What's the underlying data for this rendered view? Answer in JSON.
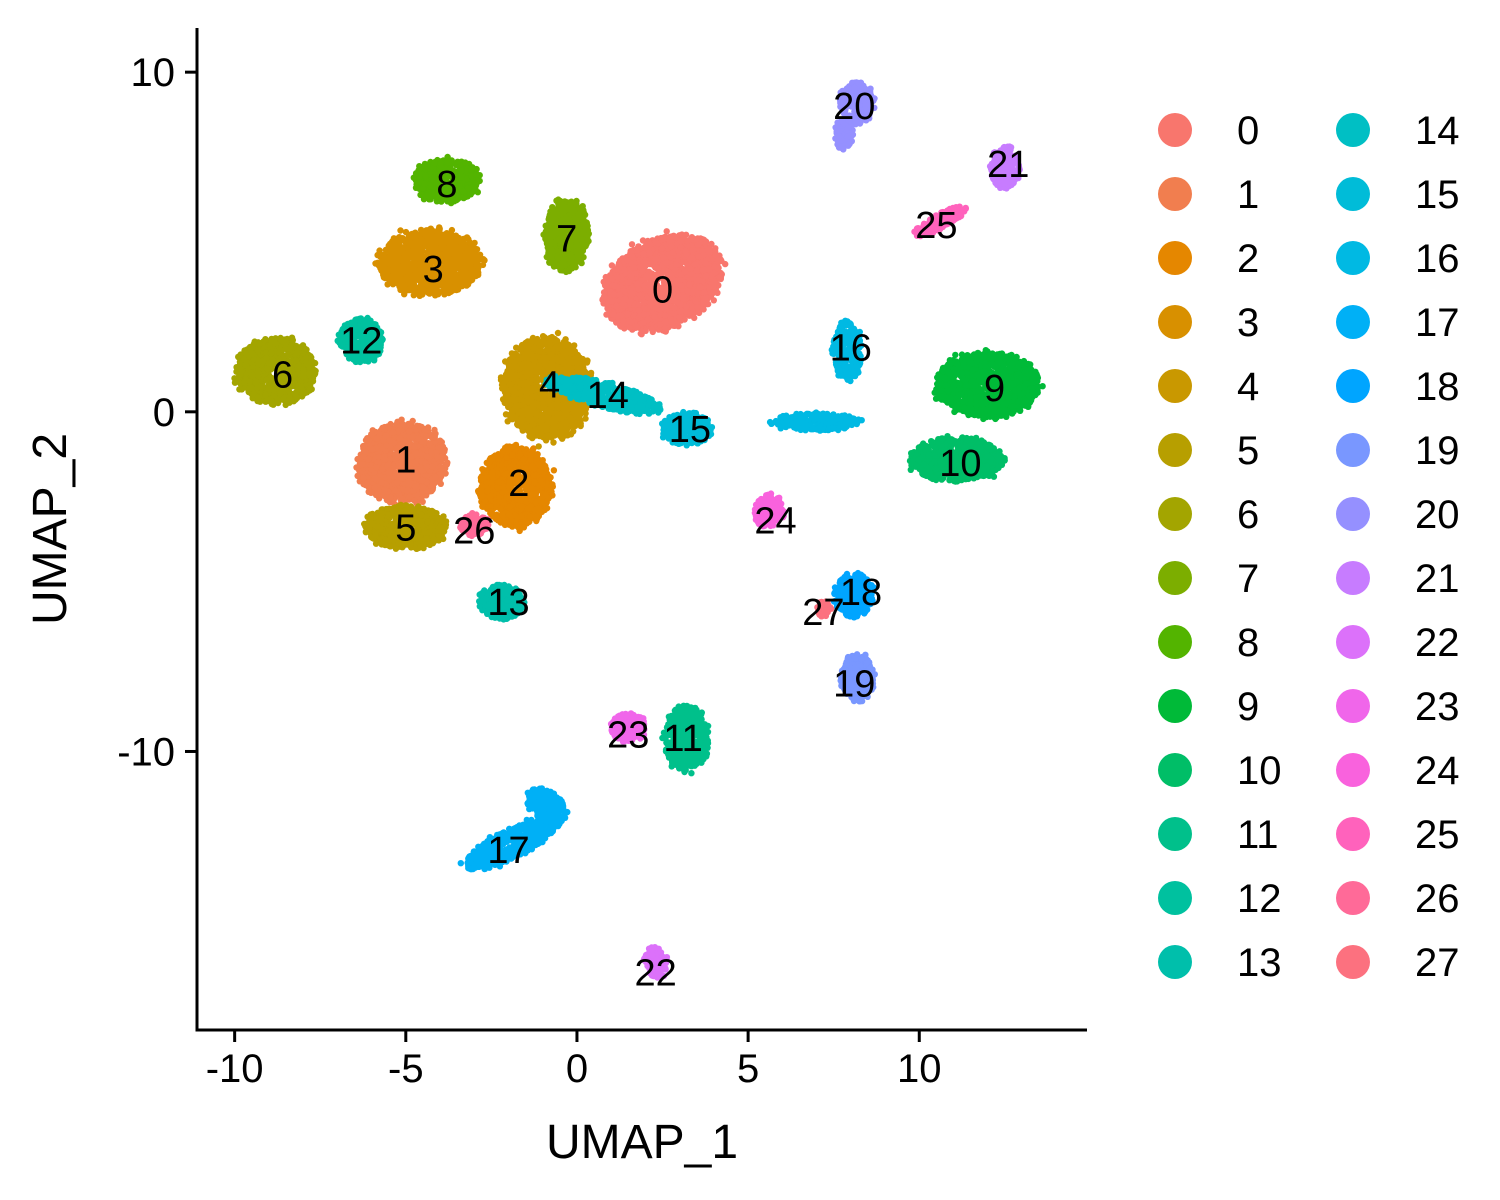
{
  "chart_data": {
    "type": "scatter",
    "title": "",
    "xlabel": "UMAP_1",
    "ylabel": "UMAP_2",
    "xlim": [
      -11.1,
      14.9
    ],
    "ylim": [
      -18.2,
      11.3
    ],
    "x_ticks": [
      -10,
      -5,
      0,
      5,
      10
    ],
    "y_ticks": [
      -10,
      0,
      10
    ],
    "x_tick_labels": [
      "-10",
      "-5",
      "0",
      "5",
      "10"
    ],
    "y_tick_labels": [
      "-10",
      "0",
      "10"
    ],
    "legend": {
      "placement": "right",
      "columns": 2
    },
    "grid": false,
    "clusters": [
      {
        "name": "0",
        "color": "#F8766D",
        "x": 2.5,
        "y": 3.6
      },
      {
        "name": "1",
        "color": "#F17E4F",
        "x": -5.0,
        "y": -1.4
      },
      {
        "name": "2",
        "color": "#E58700",
        "x": -1.7,
        "y": -2.1
      },
      {
        "name": "3",
        "color": "#D89000",
        "x": -4.2,
        "y": 4.2
      },
      {
        "name": "4",
        "color": "#C99800",
        "x": -0.8,
        "y": 0.8
      },
      {
        "name": "5",
        "color": "#B79F00",
        "x": -5.0,
        "y": -3.4
      },
      {
        "name": "6",
        "color": "#A3A500",
        "x": -8.6,
        "y": 1.1
      },
      {
        "name": "7",
        "color": "#7CAE00",
        "x": -0.3,
        "y": 5.1
      },
      {
        "name": "8",
        "color": "#53B400",
        "x": -3.8,
        "y": 6.7
      },
      {
        "name": "9",
        "color": "#00BA38",
        "x": 12.2,
        "y": 0.7
      },
      {
        "name": "10",
        "color": "#00BE67",
        "x": 11.2,
        "y": -1.5
      },
      {
        "name": "11",
        "color": "#00C08B",
        "x": 3.1,
        "y": -9.6
      },
      {
        "name": "12",
        "color": "#00C19F",
        "x": -6.3,
        "y": 2.1
      },
      {
        "name": "13",
        "color": "#00BFAB",
        "x": -2.0,
        "y": -5.6
      },
      {
        "name": "14",
        "color": "#00BFC4",
        "x": 0.9,
        "y": 0.5
      },
      {
        "name": "15",
        "color": "#00BCD8",
        "x": 3.3,
        "y": -0.5
      },
      {
        "name": "16",
        "color": "#00B9E3",
        "x": 8.0,
        "y": 1.9
      },
      {
        "name": "17",
        "color": "#00B0F6",
        "x": -2.0,
        "y": -12.9
      },
      {
        "name": "18",
        "color": "#00A5FF",
        "x": 8.3,
        "y": -5.3
      },
      {
        "name": "19",
        "color": "#7997FF",
        "x": 8.1,
        "y": -8.0
      },
      {
        "name": "20",
        "color": "#9590FF",
        "x": 8.1,
        "y": 9.0
      },
      {
        "name": "21",
        "color": "#C77CFF",
        "x": 12.6,
        "y": 7.3
      },
      {
        "name": "22",
        "color": "#DC71FA",
        "x": 2.3,
        "y": -16.5
      },
      {
        "name": "23",
        "color": "#F066EA",
        "x": 1.5,
        "y": -9.5
      },
      {
        "name": "24",
        "color": "#F962DD",
        "x": 5.8,
        "y": -3.2
      },
      {
        "name": "25",
        "color": "#FF62BC",
        "x": 10.5,
        "y": 5.5
      },
      {
        "name": "26",
        "color": "#FF6A98",
        "x": -3.0,
        "y": -3.5
      },
      {
        "name": "27",
        "color": "#FC717F",
        "x": 7.2,
        "y": -5.9
      }
    ]
  }
}
